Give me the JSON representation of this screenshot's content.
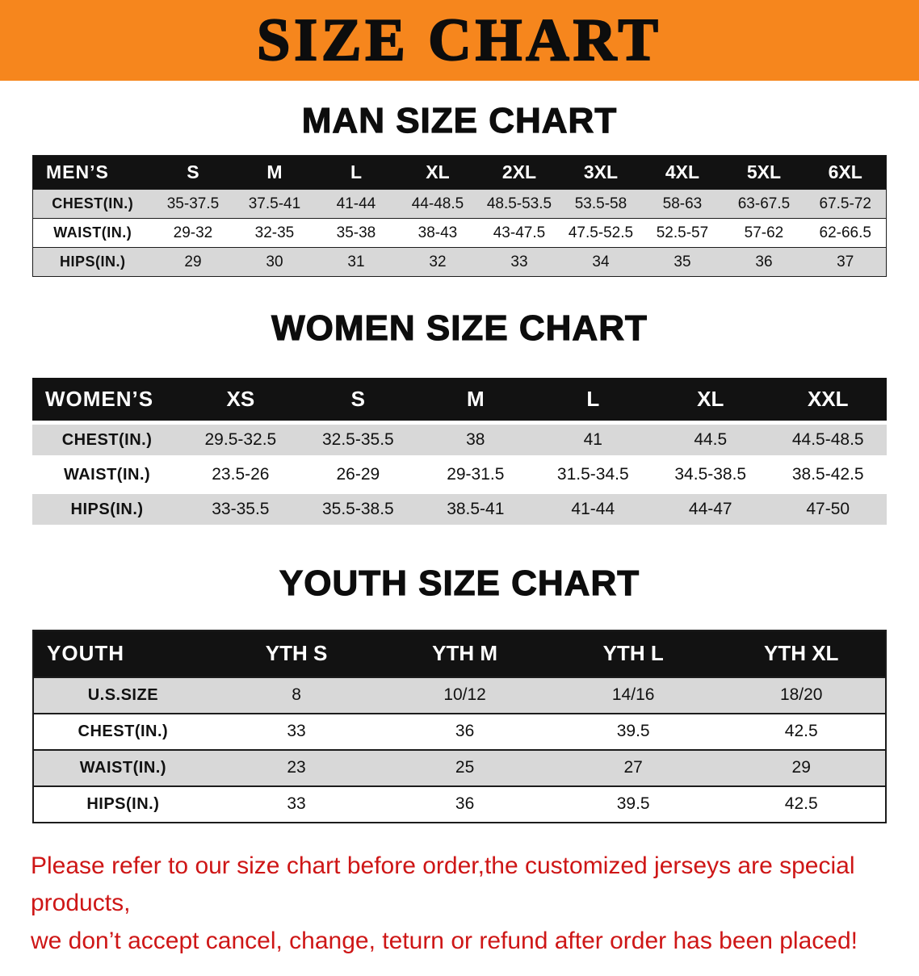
{
  "banner": {
    "title": "SIZE CHART"
  },
  "chart_data": [
    {
      "type": "table",
      "heading": "MAN SIZE CHART",
      "corner_label": "MEN’S",
      "columns": [
        "S",
        "M",
        "L",
        "XL",
        "2XL",
        "3XL",
        "4XL",
        "5XL",
        "6XL"
      ],
      "rows": [
        {
          "label": "CHEST(IN.)",
          "values": [
            "35-37.5",
            "37.5-41",
            "41-44",
            "44-48.5",
            "48.5-53.5",
            "53.5-58",
            "58-63",
            "63-67.5",
            "67.5-72"
          ]
        },
        {
          "label": "WAIST(IN.)",
          "values": [
            "29-32",
            "32-35",
            "35-38",
            "38-43",
            "43-47.5",
            "47.5-52.5",
            "52.5-57",
            "57-62",
            "62-66.5"
          ]
        },
        {
          "label": "HIPS(IN.)",
          "values": [
            "29",
            "30",
            "31",
            "32",
            "33",
            "34",
            "35",
            "36",
            "37"
          ]
        }
      ]
    },
    {
      "type": "table",
      "heading": "WOMEN SIZE CHART",
      "corner_label": "WOMEN’S",
      "columns": [
        "XS",
        "S",
        "M",
        "L",
        "XL",
        "XXL"
      ],
      "rows": [
        {
          "label": "CHEST(IN.)",
          "values": [
            "29.5-32.5",
            "32.5-35.5",
            "38",
            "41",
            "44.5",
            "44.5-48.5"
          ]
        },
        {
          "label": "WAIST(IN.)",
          "values": [
            "23.5-26",
            "26-29",
            "29-31.5",
            "31.5-34.5",
            "34.5-38.5",
            "38.5-42.5"
          ]
        },
        {
          "label": "HIPS(IN.)",
          "values": [
            "33-35.5",
            "35.5-38.5",
            "38.5-41",
            "41-44",
            "44-47",
            "47-50"
          ]
        }
      ]
    },
    {
      "type": "table",
      "heading": "YOUTH SIZE CHART",
      "corner_label": "YOUTH",
      "columns": [
        "YTH S",
        "YTH M",
        "YTH L",
        "YTH XL"
      ],
      "rows": [
        {
          "label": "U.S.SIZE",
          "values": [
            "8",
            "10/12",
            "14/16",
            "18/20"
          ]
        },
        {
          "label": "CHEST(IN.)",
          "values": [
            "33",
            "36",
            "39.5",
            "42.5"
          ]
        },
        {
          "label": "WAIST(IN.)",
          "values": [
            "23",
            "25",
            "27",
            "29"
          ]
        },
        {
          "label": "HIPS(IN.)",
          "values": [
            "33",
            "36",
            "39.5",
            "42.5"
          ]
        }
      ]
    }
  ],
  "footer": {
    "line1": "Please refer to our size chart before order,the customized jerseys are special products,",
    "line2": "we don’t accept cancel, change, teturn or refund after order has been placed!"
  },
  "colors": {
    "banner_bg": "#F6861D",
    "header_bg": "#121212",
    "stripe": "#d8d8d8",
    "footer_text": "#CE1616"
  }
}
